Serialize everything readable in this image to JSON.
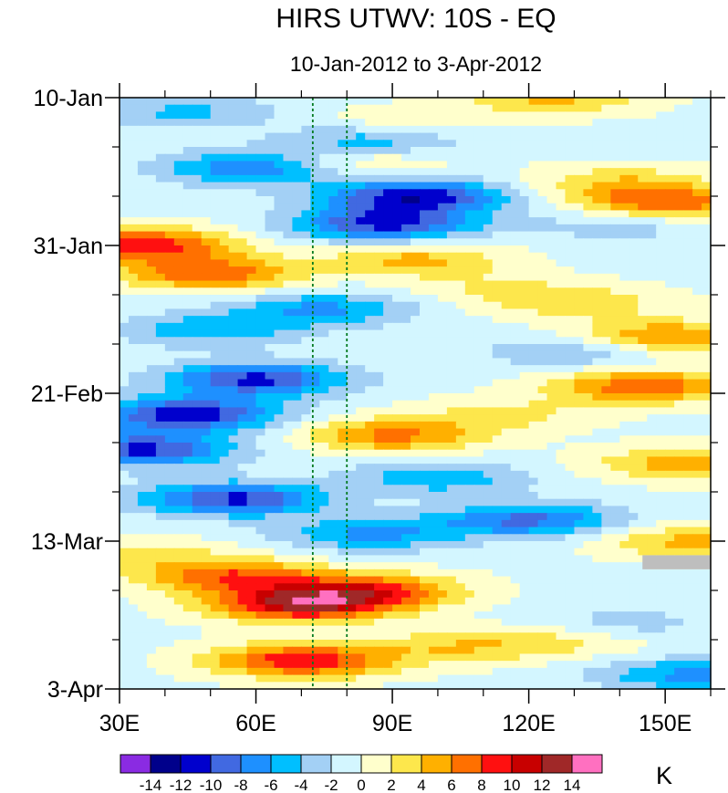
{
  "chart_data": {
    "type": "heatmap",
    "title": "HIRS UTWV: 10S - EQ",
    "subtitle": "10-Jan-2012 to 3-Apr-2012",
    "units": "K",
    "x_axis": {
      "range": [
        30,
        160
      ],
      "ticks": [
        30,
        60,
        90,
        120,
        150
      ],
      "tick_labels": [
        "30E",
        "60E",
        "90E",
        "120E",
        "150E"
      ]
    },
    "y_axis": {
      "range_days": [
        0,
        84
      ],
      "ticks": [
        0,
        21,
        42,
        63,
        84
      ],
      "tick_labels": [
        "10-Jan",
        "31-Jan",
        "21-Feb",
        "13-Mar",
        "3-Apr"
      ]
    },
    "reference_lines_lon": [
      72.5,
      80
    ],
    "colorbar": {
      "levels": [
        -14,
        -12,
        -10,
        -8,
        -6,
        -4,
        -2,
        0,
        2,
        4,
        6,
        8,
        10,
        12,
        14
      ],
      "labels": [
        "-14",
        "-12",
        "-10",
        "-8",
        "-6",
        "-4",
        "-2",
        "0",
        "2",
        "4",
        "6",
        "8",
        "10",
        "12",
        "14"
      ],
      "colors": [
        "#8a2be2",
        "#00008b",
        "#0000cd",
        "#4169e1",
        "#1e90ff",
        "#00bfff",
        "#a3d0f5",
        "#d3f6ff",
        "#ffffcc",
        "#fde74c",
        "#ffb000",
        "#ff7000",
        "#ff1010",
        "#c80000",
        "#a02828",
        "#ff70c0"
      ]
    },
    "missing_color": "#bebebe",
    "band_features": [
      {
        "day": 0,
        "lon": 125,
        "amp": 5
      },
      {
        "day": 2,
        "lon": 45,
        "amp": -4
      },
      {
        "day": 4,
        "lon": 90,
        "amp": 3
      },
      {
        "day": 6,
        "lon": 85,
        "amp": -6
      },
      {
        "day": 9,
        "lon": 80,
        "amp": 4
      },
      {
        "day": 10,
        "lon": 60,
        "amp": -8
      },
      {
        "day": 12,
        "lon": 140,
        "amp": 4
      },
      {
        "day": 14,
        "lon": 95,
        "amp": -11
      },
      {
        "day": 15,
        "lon": 150,
        "amp": 8
      },
      {
        "day": 18,
        "lon": 88,
        "amp": -10
      },
      {
        "day": 18,
        "lon": 140,
        "amp": -3
      },
      {
        "day": 21,
        "lon": 35,
        "amp": 10
      },
      {
        "day": 23,
        "lon": 95,
        "amp": 5
      },
      {
        "day": 25,
        "lon": 50,
        "amp": 8
      },
      {
        "day": 27,
        "lon": 110,
        "amp": 2
      },
      {
        "day": 29,
        "lon": 130,
        "amp": 4
      },
      {
        "day": 30,
        "lon": 75,
        "amp": -6
      },
      {
        "day": 33,
        "lon": 50,
        "amp": -5
      },
      {
        "day": 34,
        "lon": 150,
        "amp": 7
      },
      {
        "day": 36,
        "lon": 130,
        "amp": -4
      },
      {
        "day": 40,
        "lon": 60,
        "amp": -10
      },
      {
        "day": 41,
        "lon": 145,
        "amp": 8
      },
      {
        "day": 45,
        "lon": 45,
        "amp": -11
      },
      {
        "day": 45,
        "lon": 115,
        "amp": 3
      },
      {
        "day": 48,
        "lon": 90,
        "amp": 7
      },
      {
        "day": 50,
        "lon": 35,
        "amp": -10
      },
      {
        "day": 52,
        "lon": 155,
        "amp": 6
      },
      {
        "day": 54,
        "lon": 100,
        "amp": -5
      },
      {
        "day": 57,
        "lon": 55,
        "amp": -10
      },
      {
        "day": 60,
        "lon": 120,
        "amp": -8
      },
      {
        "day": 62,
        "lon": 85,
        "amp": -6
      },
      {
        "day": 63,
        "lon": 155,
        "amp": 5
      },
      {
        "day": 65,
        "lon": 35,
        "amp": 3
      },
      {
        "day": 68,
        "lon": 55,
        "amp": 8
      },
      {
        "day": 70,
        "lon": 85,
        "amp": 8
      },
      {
        "day": 72,
        "lon": 70,
        "amp": 12
      },
      {
        "day": 75,
        "lon": 140,
        "amp": -3
      },
      {
        "day": 77,
        "lon": 130,
        "amp": 3
      },
      {
        "day": 78,
        "lon": 105,
        "amp": 4
      },
      {
        "day": 80,
        "lon": 70,
        "amp": 10
      },
      {
        "day": 82,
        "lon": 155,
        "amp": -6
      }
    ],
    "missing_region": {
      "lon": [
        145,
        160
      ],
      "day": [
        65,
        67
      ]
    }
  }
}
